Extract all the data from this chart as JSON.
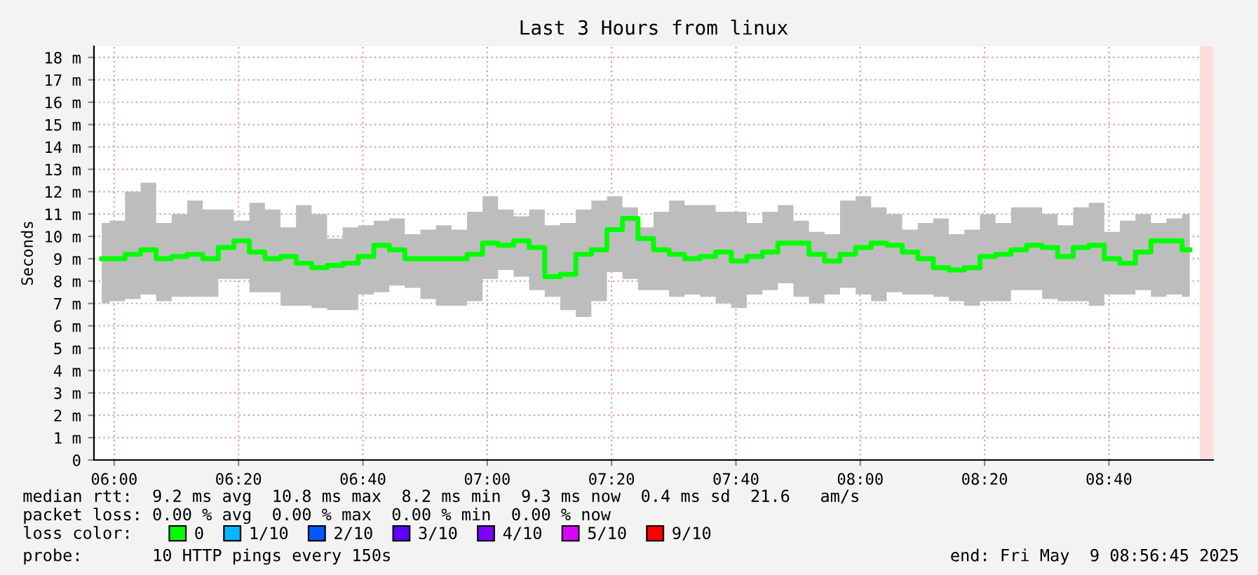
{
  "chart_data": {
    "type": "step",
    "title": "Last 3 Hours from linux",
    "ylabel": "Seconds",
    "x": [
      5.9667,
      6.0083,
      6.05,
      6.0917,
      6.1333,
      6.175,
      6.2167,
      6.2583,
      6.3,
      6.3417,
      6.3833,
      6.425,
      6.4667,
      6.5083,
      6.55,
      6.5917,
      6.6333,
      6.675,
      6.7167,
      6.7583,
      6.8,
      6.8417,
      6.8833,
      6.925,
      6.9667,
      7.0083,
      7.05,
      7.0917,
      7.1333,
      7.175,
      7.2167,
      7.2583,
      7.3,
      7.3417,
      7.3833,
      7.425,
      7.4667,
      7.5083,
      7.55,
      7.5917,
      7.6333,
      7.675,
      7.7167,
      7.7583,
      7.8,
      7.8417,
      7.8833,
      7.925,
      7.9667,
      8.0083,
      8.05,
      8.0917,
      8.1333,
      8.175,
      8.2167,
      8.2583,
      8.3,
      8.3417,
      8.3833,
      8.425,
      8.4667,
      8.5083,
      8.55,
      8.5917,
      8.6333,
      8.675,
      8.7167,
      8.7583,
      8.8,
      8.8417,
      8.8833
    ],
    "series": [
      {
        "name": "0",
        "color": "#00ff00",
        "values": [
          9.0,
          9.0,
          9.2,
          9.4,
          9.0,
          9.1,
          9.2,
          9.0,
          9.5,
          9.8,
          9.3,
          9.0,
          9.1,
          8.8,
          8.6,
          8.7,
          8.8,
          9.1,
          9.6,
          9.4,
          9.0,
          9.0,
          9.0,
          9.0,
          9.2,
          9.7,
          9.6,
          9.8,
          9.5,
          8.2,
          8.3,
          9.2,
          9.4,
          10.3,
          10.8,
          9.9,
          9.4,
          9.2,
          9.0,
          9.1,
          9.3,
          8.9,
          9.1,
          9.3,
          9.7,
          9.7,
          9.2,
          8.9,
          9.2,
          9.5,
          9.7,
          9.6,
          9.3,
          9.0,
          8.6,
          8.5,
          8.6,
          9.1,
          9.2,
          9.4,
          9.6,
          9.5,
          9.1,
          9.5,
          9.6,
          9.0,
          8.8,
          9.3,
          9.8,
          9.8,
          9.4
        ],
        "upper": [
          10.6,
          10.7,
          12.0,
          12.4,
          10.6,
          11.0,
          11.6,
          11.2,
          11.2,
          10.7,
          11.5,
          11.2,
          10.4,
          11.4,
          11.0,
          9.9,
          10.4,
          10.5,
          10.7,
          10.8,
          10.1,
          10.3,
          10.5,
          10.3,
          11.1,
          11.8,
          11.2,
          10.9,
          11.2,
          10.5,
          10.6,
          11.2,
          11.6,
          11.8,
          11.3,
          10.4,
          11.1,
          11.6,
          11.4,
          11.4,
          11.1,
          11.1,
          10.6,
          11.1,
          11.4,
          10.7,
          10.2,
          10.1,
          11.6,
          11.8,
          11.3,
          11.0,
          10.3,
          10.6,
          10.8,
          10.1,
          10.3,
          11.0,
          10.6,
          11.3,
          11.3,
          11.0,
          10.5,
          11.3,
          11.5,
          10.2,
          10.7,
          11.0,
          10.6,
          10.8,
          11.0
        ],
        "lower": [
          7.0,
          7.1,
          7.2,
          7.4,
          7.1,
          7.3,
          7.3,
          7.3,
          8.1,
          8.1,
          7.5,
          7.5,
          6.9,
          6.9,
          6.8,
          6.7,
          6.7,
          7.4,
          7.5,
          7.8,
          7.7,
          7.2,
          6.9,
          6.9,
          7.1,
          8.1,
          8.5,
          8.2,
          7.6,
          7.3,
          6.7,
          6.4,
          7.1,
          8.4,
          8.1,
          7.6,
          7.6,
          7.3,
          7.4,
          7.3,
          7.0,
          6.8,
          7.4,
          7.6,
          7.9,
          7.3,
          7.0,
          7.4,
          7.7,
          7.4,
          7.1,
          7.5,
          7.4,
          7.4,
          7.3,
          7.1,
          6.9,
          7.1,
          7.1,
          7.6,
          7.6,
          7.2,
          7.1,
          7.1,
          6.9,
          7.4,
          7.4,
          7.6,
          7.3,
          7.4,
          7.3
        ]
      },
      {
        "name": "1/10",
        "color": "#00b8ff",
        "values": [
          null,
          null,
          null,
          null,
          null,
          null,
          null,
          null,
          null,
          null,
          null,
          null,
          null,
          null,
          null,
          null,
          null,
          null,
          null,
          null,
          null,
          null,
          null,
          null,
          null,
          null,
          null,
          null,
          null,
          null,
          null,
          null,
          null,
          null,
          null,
          null,
          null,
          null,
          null,
          null,
          null,
          null,
          null,
          null,
          null,
          null,
          null,
          null,
          null,
          null,
          null,
          null,
          null,
          null,
          null,
          null,
          null,
          null,
          null,
          null,
          null,
          null,
          null,
          null,
          null,
          null,
          null,
          null,
          null,
          null,
          null
        ]
      },
      {
        "name": "2/10",
        "color": "#0059ff",
        "values": [
          null,
          null,
          null,
          null,
          null,
          null,
          null,
          null,
          null,
          null,
          null,
          null,
          null,
          null,
          null,
          null,
          null,
          null,
          null,
          null,
          null,
          null,
          null,
          null,
          null,
          null,
          null,
          null,
          null,
          null,
          null,
          null,
          null,
          null,
          null,
          null,
          null,
          null,
          null,
          null,
          null,
          null,
          null,
          null,
          null,
          null,
          null,
          null,
          null,
          null,
          null,
          null,
          null,
          null,
          null,
          null,
          null,
          null,
          null,
          null,
          null,
          null,
          null,
          null,
          null,
          null,
          null,
          null,
          null,
          null,
          null
        ]
      },
      {
        "name": "3/10",
        "color": "#5e00ff",
        "values": [
          null,
          null,
          null,
          null,
          null,
          null,
          null,
          null,
          null,
          null,
          null,
          null,
          null,
          null,
          null,
          null,
          null,
          null,
          null,
          null,
          null,
          null,
          null,
          null,
          null,
          null,
          null,
          null,
          null,
          null,
          null,
          null,
          null,
          null,
          null,
          null,
          null,
          null,
          null,
          null,
          null,
          null,
          null,
          null,
          null,
          null,
          null,
          null,
          null,
          null,
          null,
          null,
          null,
          null,
          null,
          null,
          null,
          null,
          null,
          null,
          null,
          null,
          null,
          null,
          null,
          null,
          null,
          null,
          null,
          null,
          null
        ]
      },
      {
        "name": "4/10",
        "color": "#7e00ff",
        "values": [
          null,
          null,
          null,
          null,
          null,
          null,
          null,
          null,
          null,
          null,
          null,
          null,
          null,
          null,
          null,
          null,
          null,
          null,
          null,
          null,
          null,
          null,
          null,
          null,
          null,
          null,
          null,
          null,
          null,
          null,
          null,
          null,
          null,
          null,
          null,
          null,
          null,
          null,
          null,
          null,
          null,
          null,
          null,
          null,
          null,
          null,
          null,
          null,
          null,
          null,
          null,
          null,
          null,
          null,
          null,
          null,
          null,
          null,
          null,
          null,
          null,
          null,
          null,
          null,
          null,
          null,
          null,
          null,
          null,
          null,
          null
        ]
      },
      {
        "name": "5/10",
        "color": "#dd00ff",
        "values": [
          null,
          null,
          null,
          null,
          null,
          null,
          null,
          null,
          null,
          null,
          null,
          null,
          null,
          null,
          null,
          null,
          null,
          null,
          null,
          null,
          null,
          null,
          null,
          null,
          null,
          null,
          null,
          null,
          null,
          null,
          null,
          null,
          null,
          null,
          null,
          null,
          null,
          null,
          null,
          null,
          null,
          null,
          null,
          null,
          null,
          null,
          null,
          null,
          null,
          null,
          null,
          null,
          null,
          null,
          null,
          null,
          null,
          null,
          null,
          null,
          null,
          null,
          null,
          null,
          null,
          null,
          null,
          null,
          null,
          null,
          null
        ]
      },
      {
        "name": "9/10",
        "color": "#ff0000",
        "values": [
          null,
          null,
          null,
          null,
          null,
          null,
          null,
          null,
          null,
          null,
          null,
          null,
          null,
          null,
          null,
          null,
          null,
          null,
          null,
          null,
          null,
          null,
          null,
          null,
          null,
          null,
          null,
          null,
          null,
          null,
          null,
          null,
          null,
          null,
          null,
          null,
          null,
          null,
          null,
          null,
          null,
          null,
          null,
          null,
          null,
          null,
          null,
          null,
          null,
          null,
          null,
          null,
          null,
          null,
          null,
          null,
          null,
          null,
          null,
          null,
          null,
          null,
          null,
          null,
          null,
          null,
          null,
          null,
          null,
          null,
          null
        ]
      }
    ],
    "xlim": [
      5.9458,
      8.9458
    ],
    "ylim": [
      0,
      18.5
    ],
    "xticks": [
      {
        "value": 6,
        "label": "06:00"
      },
      {
        "value": 6.3333,
        "label": "06:20"
      },
      {
        "value": 6.6667,
        "label": "06:40"
      },
      {
        "value": 7,
        "label": "07:00"
      },
      {
        "value": 7.3333,
        "label": "07:20"
      },
      {
        "value": 7.6667,
        "label": "07:40"
      },
      {
        "value": 8,
        "label": "08:00"
      },
      {
        "value": 8.3333,
        "label": "08:20"
      },
      {
        "value": 8.6667,
        "label": "08:40"
      }
    ],
    "yticks": [
      0,
      {
        "value": 1,
        "label": "1 m"
      },
      {
        "value": 2,
        "label": "2 m"
      },
      {
        "value": 3,
        "label": "3 m"
      },
      {
        "value": 4,
        "label": "4 m"
      },
      {
        "value": 5,
        "label": "5 m"
      },
      {
        "value": 6,
        "label": "6 m"
      },
      {
        "value": 7,
        "label": "7 m"
      },
      {
        "value": 8,
        "label": "8 m"
      },
      {
        "value": 9,
        "label": "9 m"
      },
      {
        "value": 10,
        "label": "10 m"
      },
      {
        "value": 11,
        "label": "11 m"
      },
      {
        "value": 12,
        "label": "12 m"
      },
      {
        "value": 13,
        "label": "13 m"
      },
      {
        "value": 14,
        "label": "14 m"
      },
      {
        "value": 15,
        "label": "15 m"
      },
      {
        "value": 16,
        "label": "16 m"
      },
      {
        "value": 17,
        "label": "17 m"
      },
      {
        "value": 18,
        "label": "18 m"
      }
    ],
    "grid": true,
    "legend": "bottom",
    "bands": [
      {
        "axis": "x",
        "from": 8.91,
        "to": 8.9458,
        "color": "#ffdddd"
      }
    ],
    "annotations": [
      "median rtt:  9.2 ms avg  10.8 ms max  8.2 ms min  9.3 ms now  0.4 ms sd  21.6   am/s",
      "packet loss: 0.00 % avg  0.00 % max  0.00 % min  0.00 % now",
      "loss color:",
      "probe:       10 HTTP pings every 150s",
      "end: Fri May  9 08:56:45 2025"
    ]
  }
}
